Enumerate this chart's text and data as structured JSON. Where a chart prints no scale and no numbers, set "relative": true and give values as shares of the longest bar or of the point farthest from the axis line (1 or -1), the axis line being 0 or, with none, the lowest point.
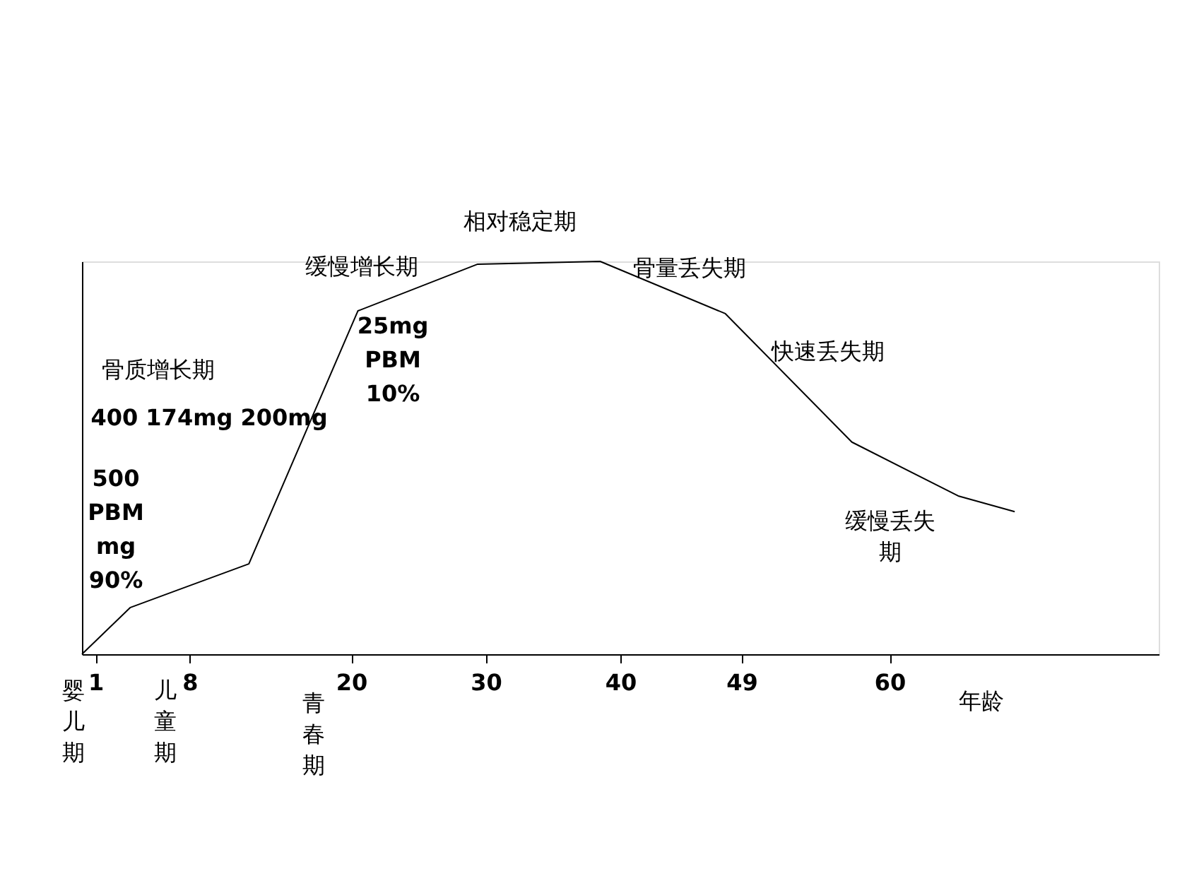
{
  "chart_data": {
    "type": "line",
    "relative": true,
    "xlabel": "年龄",
    "x": [
      0,
      3.6,
      12.4,
      20.5,
      29.4,
      38.5,
      47.8,
      57.2,
      65.1,
      69.3
    ],
    "series": [
      {
        "color": "#000000",
        "values": [
          0,
          0.119,
          0.23,
          0.874,
          0.993,
          1.0,
          0.867,
          0.54,
          0.403,
          0.363
        ]
      }
    ],
    "xlim": [
      0,
      80
    ],
    "xticks": [
      1,
      8,
      20,
      30,
      40,
      49,
      60
    ],
    "marker": "none",
    "line_style": "solid",
    "grid": false,
    "annotations": [
      "骨质增长期",
      "400 174mg 200mg",
      "500\nPBM\nmg\n90%",
      "25mg\nPBM\n10%",
      "缓慢增长期",
      "相对稳定期",
      "骨量丢失期",
      "快速丢失期",
      "缓慢丢失期",
      "婴儿期",
      "儿童期",
      "青春期"
    ]
  }
}
